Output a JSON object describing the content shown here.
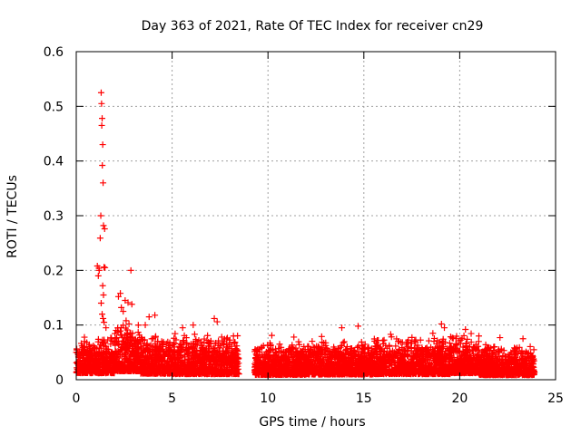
{
  "chart_data": {
    "type": "scatter",
    "title": "Day 363 of 2021, Rate Of TEC Index for receiver cn29",
    "xlabel": "GPS time / hours",
    "ylabel": "ROTI / TECUs",
    "xlim": [
      0,
      25
    ],
    "ylim": [
      0,
      0.6
    ],
    "xticks": [
      0,
      5,
      10,
      15,
      20,
      25
    ],
    "yticks": [
      0,
      0.1,
      0.2,
      0.3,
      0.4,
      0.5,
      0.6
    ],
    "xtick_labels": [
      "0",
      "5",
      "10",
      "15",
      "20",
      "25"
    ],
    "ytick_labels": [
      "0",
      "0.1",
      "0.2",
      "0.3",
      "0.4",
      "0.5",
      "0.6"
    ],
    "grid": true,
    "marker": "+",
    "color": "#ff0000",
    "series": [
      {
        "name": "ROTI",
        "points": [
          [
            1.3,
            0.525
          ],
          [
            1.32,
            0.505
          ],
          [
            1.35,
            0.478
          ],
          [
            1.33,
            0.465
          ],
          [
            1.38,
            0.43
          ],
          [
            1.36,
            0.392
          ],
          [
            1.4,
            0.36
          ],
          [
            1.28,
            0.3
          ],
          [
            1.42,
            0.282
          ],
          [
            1.48,
            0.276
          ],
          [
            1.25,
            0.259
          ],
          [
            1.1,
            0.208
          ],
          [
            1.18,
            0.204
          ],
          [
            1.45,
            0.206
          ],
          [
            1.5,
            0.205
          ],
          [
            1.2,
            0.2
          ],
          [
            2.85,
            0.2
          ],
          [
            1.15,
            0.19
          ],
          [
            1.38,
            0.172
          ],
          [
            1.42,
            0.155
          ],
          [
            2.3,
            0.158
          ],
          [
            2.2,
            0.152
          ],
          [
            1.3,
            0.14
          ],
          [
            2.55,
            0.145
          ],
          [
            2.7,
            0.141
          ],
          [
            2.9,
            0.138
          ],
          [
            2.35,
            0.132
          ],
          [
            1.35,
            0.12
          ],
          [
            2.45,
            0.125
          ],
          [
            1.4,
            0.112
          ],
          [
            1.45,
            0.105
          ],
          [
            1.55,
            0.095
          ],
          [
            2.6,
            0.108
          ],
          [
            2.75,
            0.102
          ],
          [
            3.8,
            0.115
          ],
          [
            4.1,
            0.118
          ],
          [
            3.6,
            0.1
          ],
          [
            7.2,
            0.112
          ],
          [
            7.35,
            0.106
          ],
          [
            6.1,
            0.1
          ],
          [
            5.55,
            0.095
          ],
          [
            13.85,
            0.095
          ],
          [
            14.7,
            0.098
          ],
          [
            19.05,
            0.102
          ],
          [
            19.2,
            0.095
          ],
          [
            20.3,
            0.092
          ],
          [
            8.2,
            0.08
          ],
          [
            23.3,
            0.075
          ],
          [
            18.6,
            0.085
          ],
          [
            21.0,
            0.08
          ],
          [
            16.4,
            0.083
          ],
          [
            12.8,
            0.079
          ],
          [
            10.2,
            0.081
          ],
          [
            11.35,
            0.078
          ],
          [
            22.1,
            0.077
          ],
          [
            0.55,
            0.068
          ],
          [
            2.1,
            0.07
          ],
          [
            3.1,
            0.072
          ],
          [
            4.55,
            0.069
          ],
          [
            15.7,
            0.072
          ]
        ]
      }
    ],
    "dense_band": {
      "description_free": true,
      "segments": [
        [
          0.0,
          2.0,
          0.035,
          0.03
        ],
        [
          2.0,
          3.3,
          0.045,
          0.04
        ],
        [
          3.3,
          5.0,
          0.032,
          0.035
        ],
        [
          5.0,
          8.5,
          0.03,
          0.038
        ],
        [
          9.3,
          12.0,
          0.026,
          0.03
        ],
        [
          12.0,
          15.5,
          0.028,
          0.032
        ],
        [
          15.5,
          19.5,
          0.03,
          0.035
        ],
        [
          19.5,
          21.0,
          0.035,
          0.035
        ],
        [
          21.0,
          23.9,
          0.025,
          0.028
        ]
      ]
    }
  }
}
